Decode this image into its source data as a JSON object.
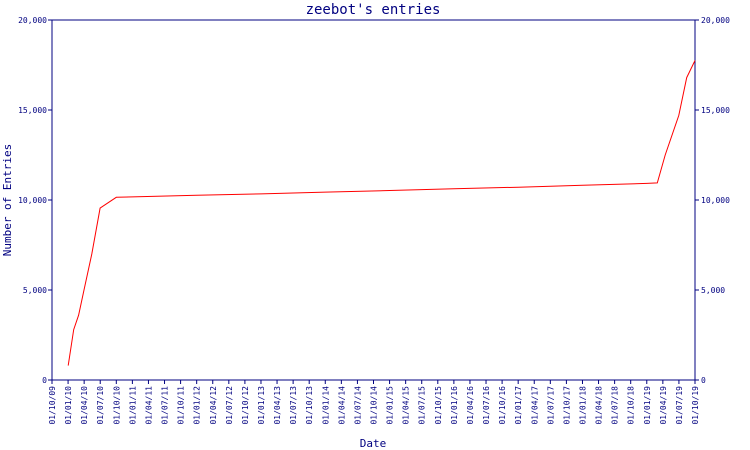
{
  "chart_data": {
    "type": "line",
    "title": "zeebot's entries",
    "xlabel": "Date",
    "ylabel": "Number of Entries",
    "ylim": [
      0,
      20000
    ],
    "yticks": [
      0,
      5000,
      10000,
      15000,
      20000
    ],
    "ytick_labels": [
      "0",
      "5,000",
      "10,000",
      "15,000",
      "20,000"
    ],
    "xlim": [
      "2009-10-01",
      "2019-10-01"
    ],
    "xtick_labels": [
      "01/10/09",
      "01/01/10",
      "01/04/10",
      "01/07/10",
      "01/10/10",
      "01/01/11",
      "01/04/11",
      "01/07/11",
      "01/10/11",
      "01/01/12",
      "01/04/12",
      "01/07/12",
      "01/10/12",
      "01/01/13",
      "01/04/13",
      "01/07/13",
      "01/10/13",
      "01/01/14",
      "01/04/14",
      "01/07/14",
      "01/10/14",
      "01/01/15",
      "01/04/15",
      "01/07/15",
      "01/10/15",
      "01/01/16",
      "01/04/16",
      "01/07/16",
      "01/10/16",
      "01/01/17",
      "01/04/17",
      "01/07/17",
      "01/10/17",
      "01/01/18",
      "01/04/18",
      "01/07/18",
      "01/10/18",
      "01/01/19",
      "01/04/19",
      "01/07/19",
      "01/10/19"
    ],
    "grid": false,
    "series": [
      {
        "color": "#ff0000",
        "points": [
          {
            "x": "2010-01-01",
            "y": 800
          },
          {
            "x": "2010-02-01",
            "y": 2800
          },
          {
            "x": "2010-03-01",
            "y": 3600
          },
          {
            "x": "2010-04-01",
            "y": 5000
          },
          {
            "x": "2010-05-15",
            "y": 7000
          },
          {
            "x": "2010-07-01",
            "y": 9550
          },
          {
            "x": "2010-10-01",
            "y": 10150
          },
          {
            "x": "2011-01-01",
            "y": 10170
          },
          {
            "x": "2012-01-01",
            "y": 10260
          },
          {
            "x": "2013-01-01",
            "y": 10340
          },
          {
            "x": "2014-01-01",
            "y": 10440
          },
          {
            "x": "2015-01-01",
            "y": 10530
          },
          {
            "x": "2016-01-01",
            "y": 10620
          },
          {
            "x": "2017-01-01",
            "y": 10710
          },
          {
            "x": "2018-01-01",
            "y": 10820
          },
          {
            "x": "2019-01-01",
            "y": 10920
          },
          {
            "x": "2019-03-01",
            "y": 10950
          },
          {
            "x": "2019-04-15",
            "y": 12500
          },
          {
            "x": "2019-07-01",
            "y": 14700
          },
          {
            "x": "2019-08-15",
            "y": 16800
          },
          {
            "x": "2019-10-01",
            "y": 17750
          }
        ]
      }
    ]
  }
}
